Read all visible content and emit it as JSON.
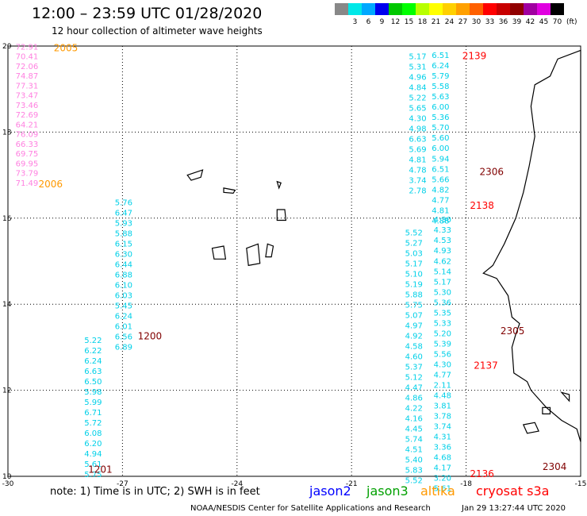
{
  "header": {
    "title": "12:00 – 23:59 UTC 01/28/2020",
    "subtitle": "12 hour collection of altimeter wave heights"
  },
  "scale": {
    "unit": "(ft)",
    "bins": [
      {
        "label": "",
        "color": "#888888"
      },
      {
        "label": "3",
        "color": "#00e8e8"
      },
      {
        "label": "6",
        "color": "#00a8ff"
      },
      {
        "label": "9",
        "color": "#0000ee"
      },
      {
        "label": "12",
        "color": "#00c800"
      },
      {
        "label": "15",
        "color": "#00ff00"
      },
      {
        "label": "18",
        "color": "#b8ff00"
      },
      {
        "label": "21",
        "color": "#ffff00"
      },
      {
        "label": "24",
        "color": "#ffd000"
      },
      {
        "label": "27",
        "color": "#ffa000"
      },
      {
        "label": "30",
        "color": "#ff6000"
      },
      {
        "label": "33",
        "color": "#ff0000"
      },
      {
        "label": "36",
        "color": "#c80000"
      },
      {
        "label": "39",
        "color": "#900000"
      },
      {
        "label": "42",
        "color": "#a000a0"
      },
      {
        "label": "45",
        "color": "#e000e0"
      },
      {
        "label": "70",
        "color": "#000000"
      }
    ]
  },
  "map": {
    "lon_range": [
      -30,
      -15
    ],
    "lat_range": [
      10,
      20
    ],
    "x_ticks": [
      "-30",
      "-27",
      "-24",
      "-21",
      "-18",
      "-15"
    ],
    "y_ticks": [
      "10",
      "12",
      "14",
      "16",
      "18",
      "20"
    ]
  },
  "colors": {
    "jason2": "#0000ff",
    "jason3": "#00a000",
    "altika": "#ff9900",
    "cryosat_s3a": "#ff0000",
    "pink_track": "#ff80e0",
    "cyan_track": "#00d0e8",
    "time_orange": "#ff9900",
    "time_red": "#ff0000",
    "time_darkred": "#800000"
  },
  "tracks": [
    {
      "color": "pink_track",
      "lon": -29.8,
      "lat_start": 19.92,
      "lat_step": -0.226,
      "values": [
        "72.91",
        "70.41",
        "72.06",
        "74.87",
        "77.31",
        "73.47",
        "73.46",
        "72.69",
        "64.21",
        "76.09",
        "66.33",
        "69.75",
        "69.95",
        "73.79",
        "71.49"
      ]
    },
    {
      "color": "cyan_track",
      "lon": -27.2,
      "lat_start": 16.3,
      "lat_step": -0.24,
      "values": [
        "5.76",
        "6.47",
        "5.93",
        "5.88",
        "6.15",
        "6.30",
        "6.44",
        "6.88",
        "6.10",
        "6.03",
        "5.45",
        "6.24",
        "6.01",
        "6.56",
        "6.89"
      ]
    },
    {
      "color": "cyan_track",
      "lon": -28.0,
      "lat_start": 13.1,
      "lat_step": -0.24,
      "values": [
        "5.22",
        "6.22",
        "6.24",
        "6.63",
        "6.50",
        "5.98",
        "5.99",
        "6.71",
        "5.72",
        "6.08",
        "6.20",
        "4.94",
        "5.61",
        "5.75"
      ]
    },
    {
      "color": "cyan_track",
      "lon": -19.5,
      "lat_start": 19.7,
      "lat_step": -0.24,
      "values": [
        "5.17",
        "5.31",
        "4.96",
        "4.84",
        "5.22",
        "5.65",
        "4.30",
        "4.98",
        "6.63",
        "5.69",
        "4.81",
        "4.78",
        "3.74",
        "2.78"
      ]
    },
    {
      "color": "cyan_track",
      "lon": -18.9,
      "lat_start": 19.72,
      "lat_step": -0.24,
      "values": [
        "6.51",
        "6.24",
        "5.79",
        "5.58",
        "5.63",
        "6.00",
        "5.36",
        "5.70",
        "5.60",
        "6.00",
        "5.94",
        "6.51",
        "5.66",
        "4.82",
        "4.77",
        "4.81",
        "4.88"
      ]
    },
    {
      "color": "cyan_track",
      "lon": -18.85,
      "lat_start": 15.9,
      "lat_step": -0.24,
      "values": [
        "4.30",
        "4.33",
        "4.53",
        "4.93",
        "4.62",
        "5.14",
        "5.17",
        "5.30",
        "5.36",
        "5.35",
        "5.33",
        "5.20",
        "5.39",
        "5.56",
        "4.30",
        "4.77",
        "2.11",
        "4.48",
        "3.81",
        "3.78",
        "3.74",
        "4.31",
        "3.36",
        "4.68",
        "4.17",
        "3.20",
        "5.61"
      ]
    },
    {
      "color": "cyan_track",
      "lon": -19.6,
      "lat_start": 15.6,
      "lat_step": -0.24,
      "values": [
        "5.52",
        "5.27",
        "5.03",
        "5.17",
        "5.10",
        "5.19",
        "5.88",
        "5.75",
        "5.07",
        "4.97",
        "4.92",
        "4.58",
        "4.60",
        "5.37",
        "5.12",
        "4.47",
        "4.86",
        "4.22",
        "4.16",
        "4.45",
        "5.74",
        "4.51",
        "5.40",
        "5.83",
        "5.52"
      ]
    }
  ],
  "time_labels": [
    {
      "text": "2005",
      "lon": -28.8,
      "lat": 19.88,
      "color": "time_orange"
    },
    {
      "text": "2006",
      "lon": -29.2,
      "lat": 16.72,
      "color": "time_orange"
    },
    {
      "text": "2139",
      "lon": -18.1,
      "lat": 19.7,
      "color": "time_red"
    },
    {
      "text": "2306",
      "lon": -17.65,
      "lat": 17.0,
      "color": "time_darkred"
    },
    {
      "text": "2138",
      "lon": -17.9,
      "lat": 16.22,
      "color": "time_red"
    },
    {
      "text": "1200",
      "lon": -26.6,
      "lat": 13.18,
      "color": "time_darkred"
    },
    {
      "text": "2305",
      "lon": -17.1,
      "lat": 13.3,
      "color": "time_darkred"
    },
    {
      "text": "2137",
      "lon": -17.8,
      "lat": 12.5,
      "color": "time_red"
    },
    {
      "text": "2304",
      "lon": -16.0,
      "lat": 10.15,
      "color": "time_darkred"
    },
    {
      "text": "2136",
      "lon": -17.9,
      "lat": 9.98,
      "color": "time_red"
    },
    {
      "text": "1201",
      "lon": -27.9,
      "lat": 10.08,
      "color": "time_darkred"
    }
  ],
  "footer": {
    "note": "note:  1) Time is in UTC; 2) SWH is in feet",
    "legend": [
      {
        "label": "jason2",
        "color": "jason2"
      },
      {
        "label": "jason3",
        "color": "jason3"
      },
      {
        "label": "altika",
        "color": "altika"
      },
      {
        "label": "cryosat s3a",
        "color": "cryosat_s3a"
      }
    ],
    "credit": "NOAA/NESDIS Center for Satellite Applications and Research",
    "timestamp": "Jan 29 13:27:44 UTC 2020"
  }
}
